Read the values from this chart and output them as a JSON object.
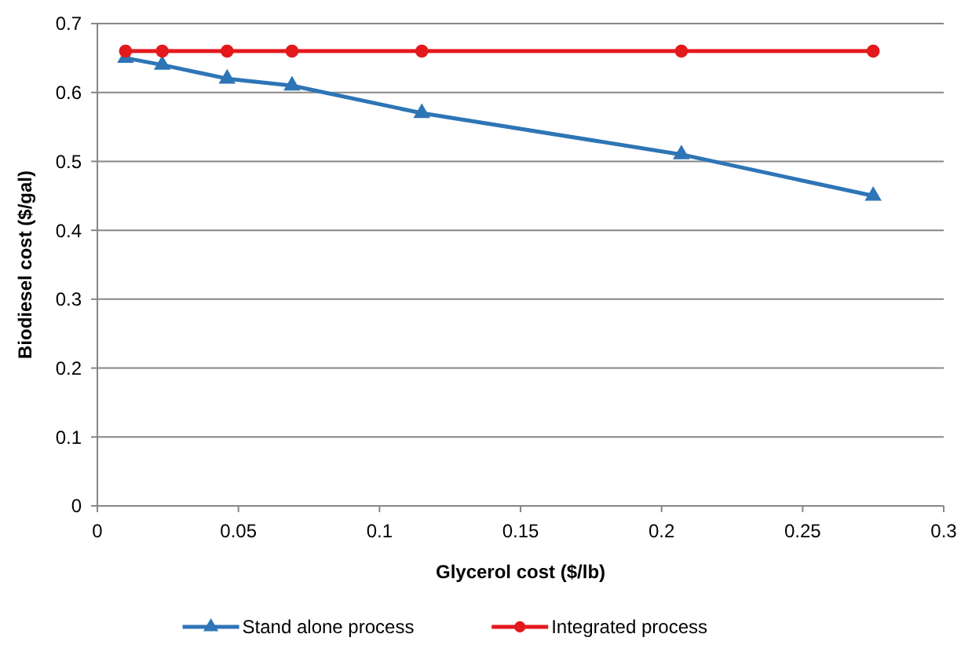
{
  "chart_data": {
    "type": "line",
    "xlabel": "Glycerol cost ($/lb)",
    "ylabel": "Biodiesel cost ($/gal)",
    "x": [
      0.01,
      0.023,
      0.046,
      0.069,
      0.115,
      0.207,
      0.275
    ],
    "series": [
      {
        "name": "Stand alone process",
        "color": "#2e75b6",
        "marker": "triangle",
        "values": [
          0.65,
          0.64,
          0.62,
          0.61,
          0.57,
          0.51,
          0.45
        ]
      },
      {
        "name": "Integrated process",
        "color": "#e3191c",
        "marker": "circle",
        "values": [
          0.66,
          0.66,
          0.66,
          0.66,
          0.66,
          0.66,
          0.66
        ]
      }
    ],
    "xlim": [
      0,
      0.3
    ],
    "xticks": [
      0,
      0.05,
      0.1,
      0.15,
      0.2,
      0.25,
      0.3
    ],
    "ylim": [
      0,
      0.7
    ],
    "yticks": [
      0,
      0.1,
      0.2,
      0.3,
      0.4,
      0.5,
      0.6,
      0.7
    ],
    "grid": "y",
    "legend": "bottom",
    "line_style": "solid"
  }
}
